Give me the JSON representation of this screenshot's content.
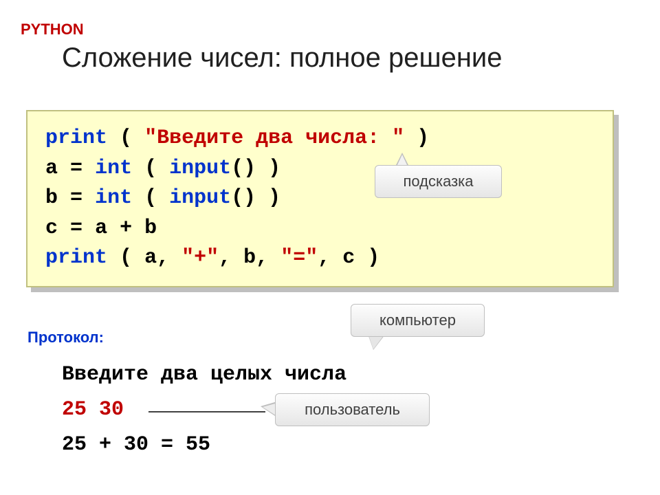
{
  "header": {
    "lang": "PYTHON",
    "title": "Сложение чисел: полное решение"
  },
  "code": {
    "kw_print": "print",
    "kw_int": "int",
    "kw_input": "input",
    "lparen": "(",
    "rparen": ")",
    "empty_parens": "()",
    "str_prompt": "\"Введите два числа: \"",
    "assign_a": "a",
    "assign_b": "b",
    "assign_c": "c",
    "eq": "=",
    "plus": "+",
    "a": "a",
    "b": "b",
    "c": "c",
    "comma": ",",
    "str_plus": "\"+\"",
    "str_eq": "\"=\""
  },
  "callouts": {
    "hint": "подсказка",
    "computer": "компьютер",
    "user": "пользователь"
  },
  "protocol": {
    "label": "Протокол:",
    "line1": "Введите два целых числа",
    "user_input": "25 30",
    "result": "25 + 30 = 55"
  },
  "colors": {
    "red": "#c00000",
    "blue": "#0033cc",
    "codebg": "#ffffcc",
    "shadow": "#bfbfbf",
    "calloutBorder": "#bfbfbf",
    "text": "#202020"
  }
}
